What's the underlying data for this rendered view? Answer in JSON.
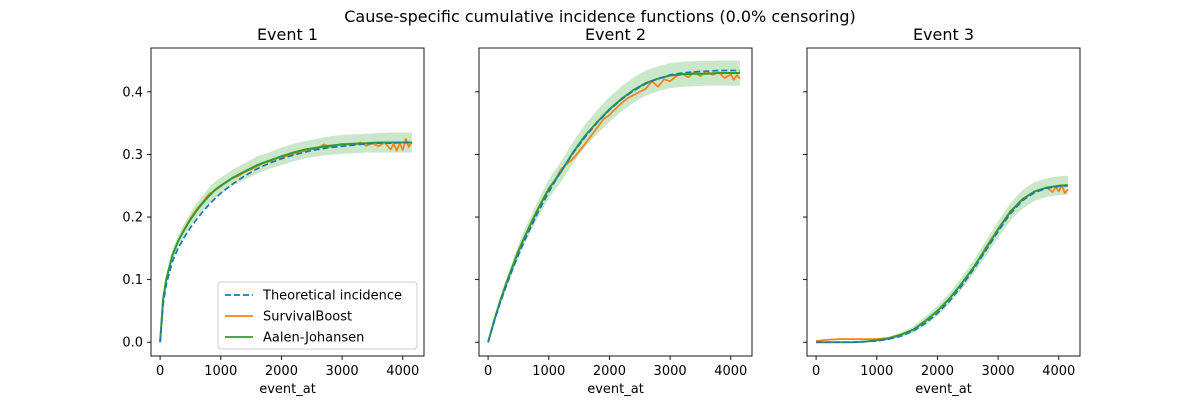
{
  "figure_title": "Cause-specific cumulative incidence functions (0.0% censoring)",
  "colors": {
    "theoretical": "#1f77b4",
    "survivalboost": "#ff7f0e",
    "aalen": "#2ca02c",
    "band": "#2ca02c"
  },
  "chart_data": [
    {
      "type": "line",
      "title": "Event 1",
      "xlabel": "event_at",
      "ylabel": "",
      "xlim": [
        -150,
        4350
      ],
      "ylim": [
        -0.022,
        0.47
      ],
      "xticks": [
        0,
        1000,
        2000,
        3000,
        4000
      ],
      "yticks": [
        0.0,
        0.1,
        0.2,
        0.3,
        0.4
      ],
      "ytick_labels": [
        "0.0",
        "0.1",
        "0.2",
        "0.3",
        "0.4"
      ],
      "show_ytick_labels": true,
      "legend": {
        "position": "lower-right",
        "entries": [
          "Theoretical incidence",
          "SurvivalBoost",
          "Aalen-Johansen"
        ]
      },
      "series": [
        {
          "name": "Theoretical incidence",
          "style": "dashed",
          "x": [
            0,
            50,
            100,
            200,
            300,
            400,
            500,
            600,
            700,
            800,
            900,
            1000,
            1200,
            1400,
            1600,
            1800,
            2000,
            2200,
            2400,
            2600,
            2800,
            3000,
            3200,
            3400,
            3600,
            3800,
            4000,
            4150
          ],
          "y": [
            0.0,
            0.06,
            0.092,
            0.128,
            0.151,
            0.168,
            0.183,
            0.196,
            0.208,
            0.219,
            0.229,
            0.238,
            0.253,
            0.266,
            0.277,
            0.286,
            0.293,
            0.299,
            0.304,
            0.308,
            0.311,
            0.313,
            0.315,
            0.317,
            0.318,
            0.318,
            0.319,
            0.319
          ]
        },
        {
          "name": "SurvivalBoost",
          "style": "solid",
          "x": [
            0,
            50,
            100,
            200,
            300,
            400,
            500,
            600,
            700,
            800,
            900,
            1000,
            1100,
            1200,
            1300,
            1400,
            1500,
            1600,
            1700,
            1800,
            1900,
            2000,
            2200,
            2400,
            2600,
            2700,
            2800,
            3000,
            3200,
            3300,
            3400,
            3500,
            3600,
            3700,
            3800,
            3850,
            3900,
            3950,
            4000,
            4050,
            4100,
            4150
          ],
          "y": [
            0.0,
            0.07,
            0.1,
            0.138,
            0.162,
            0.181,
            0.198,
            0.212,
            0.224,
            0.236,
            0.242,
            0.249,
            0.256,
            0.262,
            0.266,
            0.272,
            0.276,
            0.281,
            0.286,
            0.289,
            0.293,
            0.295,
            0.301,
            0.306,
            0.31,
            0.316,
            0.312,
            0.317,
            0.315,
            0.319,
            0.314,
            0.318,
            0.313,
            0.319,
            0.308,
            0.317,
            0.306,
            0.318,
            0.307,
            0.325,
            0.312,
            0.32
          ]
        },
        {
          "name": "Aalen-Johansen",
          "style": "solid",
          "x": [
            0,
            50,
            100,
            200,
            300,
            400,
            500,
            600,
            700,
            800,
            900,
            1000,
            1200,
            1400,
            1600,
            1800,
            2000,
            2200,
            2400,
            2600,
            2800,
            3000,
            3200,
            3400,
            3600,
            3800,
            4000,
            4150
          ],
          "y": [
            0.0,
            0.068,
            0.1,
            0.138,
            0.162,
            0.18,
            0.196,
            0.21,
            0.222,
            0.233,
            0.243,
            0.25,
            0.263,
            0.273,
            0.283,
            0.29,
            0.297,
            0.303,
            0.308,
            0.311,
            0.314,
            0.316,
            0.317,
            0.318,
            0.319,
            0.319,
            0.319,
            0.319
          ]
        }
      ],
      "band": {
        "name": "Aalen-Johansen confidence interval",
        "x": [
          0,
          50,
          100,
          200,
          300,
          400,
          500,
          600,
          700,
          800,
          900,
          1000,
          1200,
          1400,
          1600,
          1800,
          2000,
          2200,
          2400,
          2600,
          2800,
          3000,
          3200,
          3400,
          3600,
          3800,
          4000,
          4150
        ],
        "lower": [
          0.0,
          0.062,
          0.093,
          0.13,
          0.153,
          0.17,
          0.185,
          0.198,
          0.21,
          0.22,
          0.23,
          0.237,
          0.25,
          0.26,
          0.269,
          0.277,
          0.283,
          0.289,
          0.294,
          0.297,
          0.299,
          0.301,
          0.302,
          0.303,
          0.303,
          0.303,
          0.303,
          0.303
        ],
        "upper": [
          0.0,
          0.074,
          0.107,
          0.146,
          0.171,
          0.19,
          0.207,
          0.222,
          0.234,
          0.246,
          0.256,
          0.263,
          0.276,
          0.286,
          0.297,
          0.303,
          0.311,
          0.317,
          0.322,
          0.325,
          0.329,
          0.331,
          0.332,
          0.333,
          0.334,
          0.335,
          0.335,
          0.335
        ]
      }
    },
    {
      "type": "line",
      "title": "Event 2",
      "xlabel": "event_at",
      "ylabel": "",
      "xlim": [
        -150,
        4350
      ],
      "ylim": [
        -0.022,
        0.47
      ],
      "xticks": [
        0,
        1000,
        2000,
        3000,
        4000
      ],
      "yticks": [
        0.0,
        0.1,
        0.2,
        0.3,
        0.4
      ],
      "ytick_labels": [
        "0.0",
        "0.1",
        "0.2",
        "0.3",
        "0.4"
      ],
      "show_ytick_labels": false,
      "legend": null,
      "series": [
        {
          "name": "Theoretical incidence",
          "style": "dashed",
          "x": [
            0,
            100,
            200,
            300,
            400,
            500,
            600,
            700,
            800,
            900,
            1000,
            1200,
            1400,
            1600,
            1800,
            2000,
            2200,
            2400,
            2600,
            2800,
            3000,
            3200,
            3400,
            3600,
            3800,
            4000,
            4150
          ],
          "y": [
            0.0,
            0.033,
            0.063,
            0.09,
            0.116,
            0.14,
            0.162,
            0.183,
            0.203,
            0.222,
            0.24,
            0.273,
            0.302,
            0.328,
            0.351,
            0.371,
            0.388,
            0.402,
            0.413,
            0.421,
            0.427,
            0.43,
            0.432,
            0.433,
            0.434,
            0.434,
            0.434
          ]
        },
        {
          "name": "SurvivalBoost",
          "style": "solid",
          "x": [
            0,
            100,
            200,
            300,
            400,
            500,
            600,
            700,
            800,
            900,
            1000,
            1100,
            1200,
            1300,
            1400,
            1500,
            1600,
            1700,
            1800,
            1900,
            2000,
            2100,
            2200,
            2300,
            2400,
            2500,
            2600,
            2700,
            2800,
            2900,
            3000,
            3100,
            3200,
            3300,
            3400,
            3500,
            3600,
            3700,
            3800,
            3900,
            4000,
            4050,
            4100,
            4150
          ],
          "y": [
            0.0,
            0.035,
            0.066,
            0.095,
            0.121,
            0.147,
            0.168,
            0.19,
            0.209,
            0.228,
            0.246,
            0.258,
            0.276,
            0.285,
            0.293,
            0.305,
            0.317,
            0.33,
            0.343,
            0.356,
            0.363,
            0.373,
            0.382,
            0.39,
            0.395,
            0.4,
            0.405,
            0.417,
            0.408,
            0.42,
            0.417,
            0.425,
            0.429,
            0.423,
            0.432,
            0.425,
            0.433,
            0.427,
            0.431,
            0.422,
            0.428,
            0.419,
            0.427,
            0.421
          ]
        },
        {
          "name": "Aalen-Johansen",
          "style": "solid",
          "x": [
            0,
            100,
            200,
            300,
            400,
            500,
            600,
            700,
            800,
            900,
            1000,
            1200,
            1400,
            1600,
            1800,
            2000,
            2200,
            2400,
            2600,
            2800,
            3000,
            3200,
            3400,
            3600,
            3800,
            4000,
            4150
          ],
          "y": [
            0.0,
            0.035,
            0.066,
            0.094,
            0.12,
            0.145,
            0.168,
            0.188,
            0.208,
            0.227,
            0.245,
            0.272,
            0.303,
            0.33,
            0.352,
            0.372,
            0.389,
            0.403,
            0.414,
            0.421,
            0.426,
            0.428,
            0.429,
            0.429,
            0.43,
            0.43,
            0.43
          ]
        }
      ],
      "band": {
        "name": "Aalen-Johansen confidence interval",
        "x": [
          0,
          100,
          200,
          300,
          400,
          500,
          600,
          700,
          800,
          900,
          1000,
          1200,
          1400,
          1600,
          1800,
          2000,
          2200,
          2400,
          2600,
          2800,
          3000,
          3200,
          3400,
          3600,
          3800,
          4000,
          4150
        ],
        "lower": [
          0.0,
          0.03,
          0.059,
          0.086,
          0.111,
          0.134,
          0.156,
          0.176,
          0.195,
          0.213,
          0.23,
          0.256,
          0.286,
          0.312,
          0.333,
          0.352,
          0.369,
          0.383,
          0.394,
          0.401,
          0.406,
          0.408,
          0.409,
          0.41,
          0.41,
          0.41,
          0.41
        ],
        "upper": [
          0.0,
          0.04,
          0.073,
          0.102,
          0.129,
          0.156,
          0.18,
          0.2,
          0.221,
          0.241,
          0.26,
          0.288,
          0.32,
          0.348,
          0.371,
          0.392,
          0.409,
          0.423,
          0.434,
          0.441,
          0.446,
          0.448,
          0.449,
          0.449,
          0.45,
          0.45,
          0.45
        ]
      }
    },
    {
      "type": "line",
      "title": "Event 3",
      "xlabel": "event_at",
      "ylabel": "",
      "xlim": [
        -150,
        4350
      ],
      "ylim": [
        -0.022,
        0.47
      ],
      "xticks": [
        0,
        1000,
        2000,
        3000,
        4000
      ],
      "yticks": [
        0.0,
        0.1,
        0.2,
        0.3,
        0.4
      ],
      "ytick_labels": [
        "0.0",
        "0.1",
        "0.2",
        "0.3",
        "0.4"
      ],
      "show_ytick_labels": false,
      "legend": null,
      "series": [
        {
          "name": "Theoretical incidence",
          "style": "dashed",
          "x": [
            0,
            200,
            400,
            600,
            800,
            1000,
            1200,
            1400,
            1600,
            1800,
            2000,
            2200,
            2400,
            2600,
            2800,
            3000,
            3200,
            3400,
            3600,
            3800,
            4000,
            4150
          ],
          "y": [
            0.0,
            0.0,
            0.0,
            0.0,
            0.001,
            0.002,
            0.005,
            0.01,
            0.018,
            0.03,
            0.046,
            0.066,
            0.09,
            0.117,
            0.147,
            0.177,
            0.205,
            0.226,
            0.239,
            0.246,
            0.249,
            0.25
          ]
        },
        {
          "name": "SurvivalBoost",
          "style": "solid",
          "x": [
            0,
            200,
            400,
            600,
            800,
            1000,
            1100,
            1200,
            1400,
            1600,
            1800,
            2000,
            2200,
            2400,
            2600,
            2800,
            3000,
            3200,
            3400,
            3600,
            3700,
            3800,
            3900,
            3950,
            4000,
            4050,
            4100,
            4150
          ],
          "y": [
            0.002,
            0.004,
            0.005,
            0.005,
            0.005,
            0.005,
            0.006,
            0.007,
            0.012,
            0.02,
            0.033,
            0.05,
            0.07,
            0.094,
            0.119,
            0.152,
            0.181,
            0.209,
            0.229,
            0.241,
            0.244,
            0.247,
            0.24,
            0.248,
            0.241,
            0.251,
            0.238,
            0.244
          ]
        },
        {
          "name": "Aalen-Johansen",
          "style": "solid",
          "x": [
            0,
            200,
            400,
            600,
            800,
            1000,
            1200,
            1400,
            1600,
            1800,
            2000,
            2200,
            2400,
            2600,
            2800,
            3000,
            3200,
            3400,
            3600,
            3800,
            4000,
            4150
          ],
          "y": [
            0.0,
            0.0,
            0.0,
            0.0,
            0.001,
            0.003,
            0.006,
            0.012,
            0.02,
            0.034,
            0.05,
            0.07,
            0.094,
            0.12,
            0.15,
            0.18,
            0.208,
            0.228,
            0.241,
            0.247,
            0.25,
            0.251
          ]
        }
      ],
      "band": {
        "name": "Aalen-Johansen confidence interval",
        "x": [
          0,
          200,
          400,
          600,
          800,
          1000,
          1200,
          1400,
          1600,
          1800,
          2000,
          2200,
          2400,
          2600,
          2800,
          3000,
          3200,
          3400,
          3600,
          3800,
          4000,
          4150
        ],
        "lower": [
          0.0,
          0.0,
          0.0,
          0.0,
          0.0,
          0.001,
          0.003,
          0.008,
          0.015,
          0.027,
          0.042,
          0.061,
          0.084,
          0.109,
          0.138,
          0.167,
          0.194,
          0.213,
          0.226,
          0.232,
          0.235,
          0.236
        ],
        "upper": [
          0.001,
          0.001,
          0.001,
          0.001,
          0.002,
          0.005,
          0.009,
          0.016,
          0.025,
          0.041,
          0.058,
          0.079,
          0.104,
          0.131,
          0.162,
          0.193,
          0.222,
          0.243,
          0.256,
          0.262,
          0.265,
          0.266
        ]
      }
    }
  ]
}
